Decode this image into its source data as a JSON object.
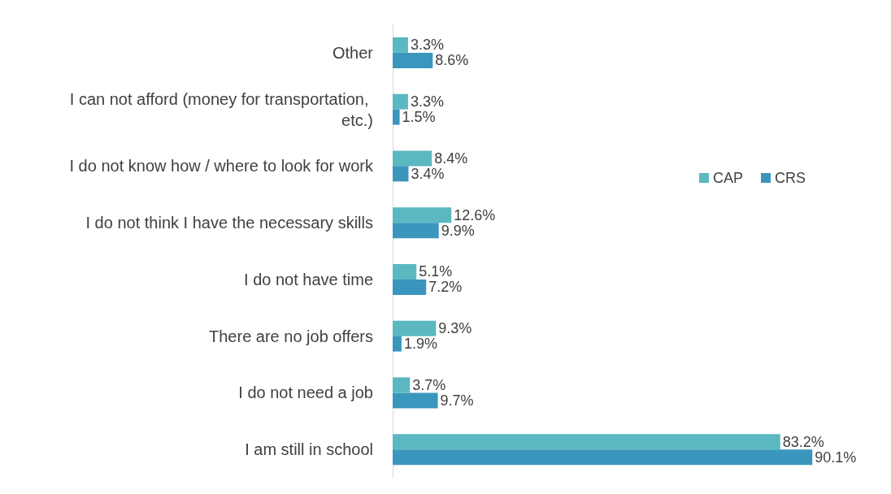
{
  "chart_data": {
    "type": "bar",
    "orientation": "horizontal",
    "categories": [
      "Other",
      "I can not afford (money for transportation, etc.)",
      "I do not know how / where to look for work",
      "I do not think I have the necessary skills",
      "I do not have time",
      "There are no job offers",
      "I do not need a job",
      "I am still in school"
    ],
    "series": [
      {
        "name": "CAP",
        "color": "#5bb8c0",
        "values": [
          3.3,
          3.3,
          8.4,
          12.6,
          5.1,
          9.3,
          3.7,
          83.2
        ],
        "value_labels": [
          "3.3%",
          "3.3%",
          "8.4%",
          "12.6%",
          "5.1%",
          "9.3%",
          "3.7%",
          "83.2%"
        ]
      },
      {
        "name": "CRS",
        "color": "#3a96bd",
        "values": [
          8.6,
          1.5,
          3.4,
          9.9,
          7.2,
          1.9,
          9.7,
          90.1
        ],
        "value_labels": [
          "8.6%",
          "1.5%",
          "3.4%",
          "9.9%",
          "7.2%",
          "1.9%",
          "9.7%",
          "90.1%"
        ]
      }
    ],
    "legend": "right",
    "grid": false,
    "tick_labels": "y"
  }
}
